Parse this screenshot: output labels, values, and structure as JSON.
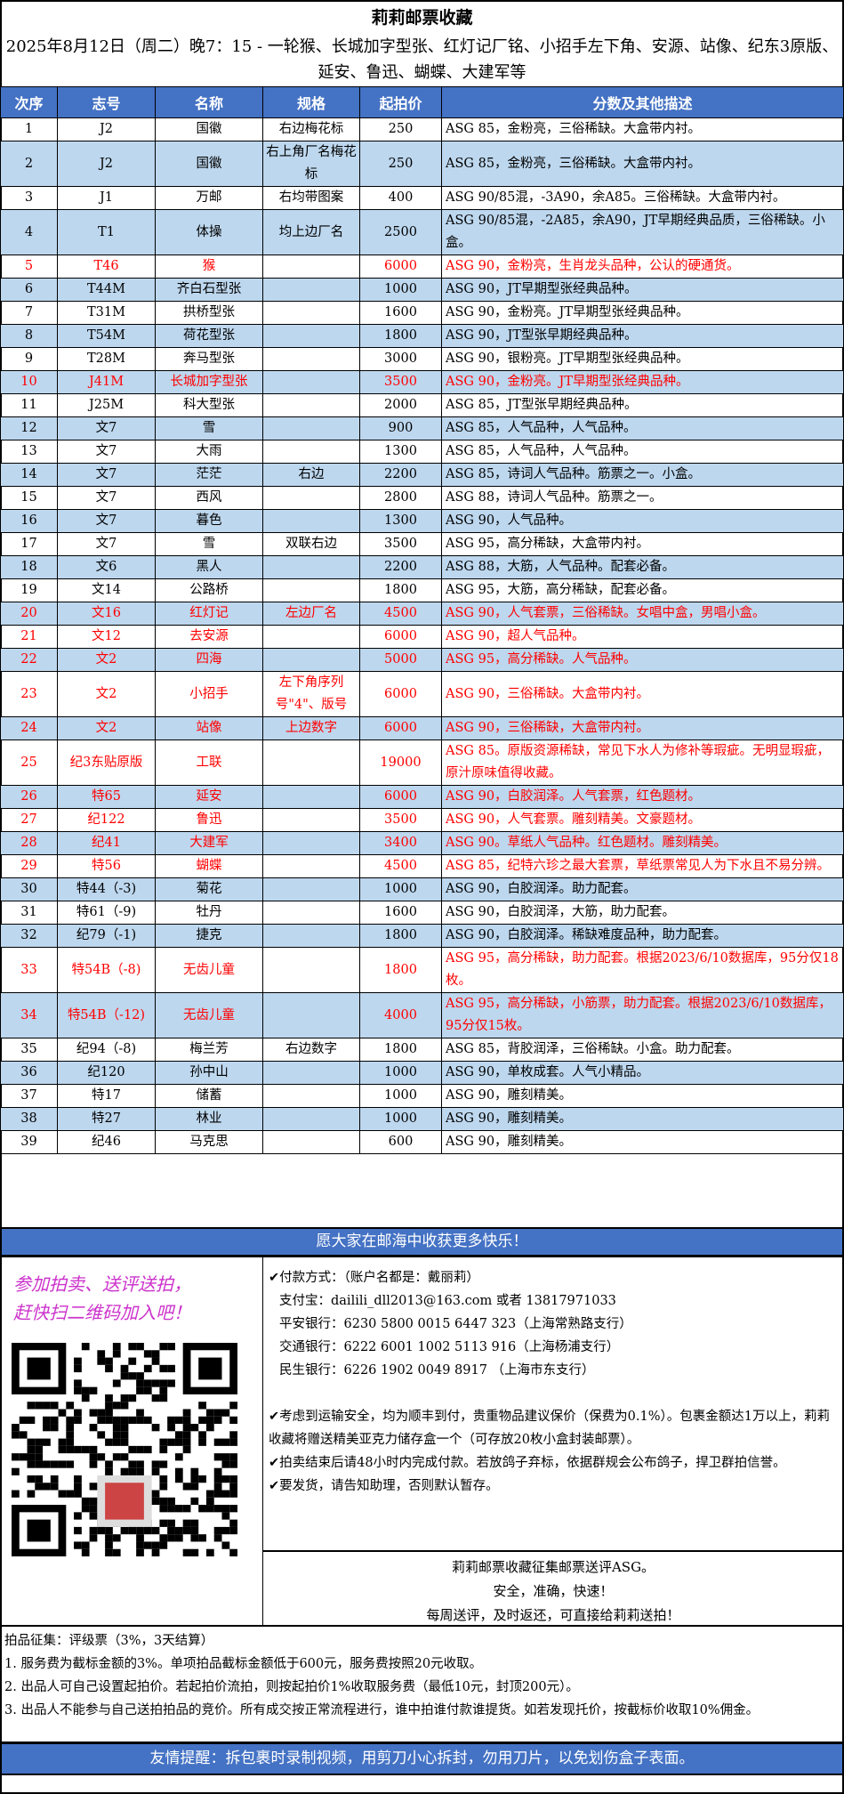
{
  "header": {
    "title": "莉莉邮票收藏",
    "subtitle": "2025年8月12日（周二）晚7：15 - 一轮猴、长城加字型张、红灯记厂铭、小招手左下角、安源、站像、纪东3原版、延安、鲁迅、蝴蝶、大建军等"
  },
  "table": {
    "columns": [
      "次序",
      "志号",
      "名称",
      "规格",
      "起拍价",
      "分数及其他描述"
    ],
    "rows": [
      [
        "1",
        "J2",
        "国徽",
        "右边梅花标",
        "250",
        "ASG 85，金粉亮，三俗稀缺。大盒带内衬。",
        false
      ],
      [
        "2",
        "J2",
        "国徽",
        "右上角厂名梅花标",
        "250",
        "ASG 85，金粉亮，三俗稀缺。大盒带内衬。",
        false
      ],
      [
        "3",
        "J1",
        "万邮",
        "右均带图案",
        "400",
        "ASG 90/85混，-3A90，余A85。三俗稀缺。大盒带内衬。",
        false
      ],
      [
        "4",
        "T1",
        "体操",
        "均上边厂名",
        "2500",
        "ASG 90/85混，-2A85，余A90，JT早期经典品质，三俗稀缺。小盒。",
        false
      ],
      [
        "5",
        "T46",
        "猴",
        "",
        "6000",
        "ASG 90，金粉亮，生肖龙头品种，公认的硬通货。",
        true
      ],
      [
        "6",
        "T44M",
        "齐白石型张",
        "",
        "1000",
        "ASG 90，JT早期型张经典品种。",
        false
      ],
      [
        "7",
        "T31M",
        "拱桥型张",
        "",
        "1600",
        "ASG 90，金粉亮。JT早期型张经典品种。",
        false
      ],
      [
        "8",
        "T54M",
        "荷花型张",
        "",
        "1800",
        "ASG 90，JT型张早期经典品种。",
        false
      ],
      [
        "9",
        "T28M",
        "奔马型张",
        "",
        "3000",
        "ASG 90，银粉亮。JT早期型张经典品种。",
        false
      ],
      [
        "10",
        "J41M",
        "长城加字型张",
        "",
        "3500",
        "ASG 90，金粉亮。JT早期型张经典品种。",
        true
      ],
      [
        "11",
        "J25M",
        "科大型张",
        "",
        "2000",
        "ASG 85，JT型张早期经典品种。",
        false
      ],
      [
        "12",
        "文7",
        "雪",
        "",
        "900",
        "ASG 85，人气品种，人气品种。",
        false
      ],
      [
        "13",
        "文7",
        "大雨",
        "",
        "1300",
        "ASG 85，人气品种，人气品种。",
        false
      ],
      [
        "14",
        "文7",
        "茫茫",
        "右边",
        "2200",
        "ASG 85，诗词人气品种。筋票之一。小盒。",
        false
      ],
      [
        "15",
        "文7",
        "西风",
        "",
        "2800",
        "ASG 88，诗词人气品种。筋票之一。",
        false
      ],
      [
        "16",
        "文7",
        "暮色",
        "",
        "1300",
        "ASG 90，人气品种。",
        false
      ],
      [
        "17",
        "文7",
        "雪",
        "双联右边",
        "3500",
        "ASG 95，高分稀缺，大盒带内衬。",
        false
      ],
      [
        "18",
        "文6",
        "黑人",
        "",
        "2200",
        "ASG 88，大筋，人气品种。配套必备。",
        false
      ],
      [
        "19",
        "文14",
        "公路桥",
        "",
        "1800",
        "ASG 95，大筋，高分稀缺，配套必备。",
        false
      ],
      [
        "20",
        "文16",
        "红灯记",
        "左边厂名",
        "4500",
        "ASG 90，人气套票，三俗稀缺。女唱中盒，男唱小盒。",
        true
      ],
      [
        "21",
        "文12",
        "去安源",
        "",
        "6000",
        "ASG 90，超人气品种。",
        true
      ],
      [
        "22",
        "文2",
        "四海",
        "",
        "5000",
        "ASG 95，高分稀缺。人气品种。",
        true
      ],
      [
        "23",
        "文2",
        "小招手",
        "左下角序列号\"4\"、版号",
        "6000",
        "ASG 90，三俗稀缺。大盒带内衬。",
        true
      ],
      [
        "24",
        "文2",
        "站像",
        "上边数字",
        "6000",
        "ASG 90，三俗稀缺，大盒带内衬。",
        true
      ],
      [
        "25",
        "纪3东贴原版",
        "工联",
        "",
        "19000",
        "ASG 85。原版资源稀缺，常见下水人为修补等瑕疵。无明显瑕疵，原汁原味值得收藏。",
        true
      ],
      [
        "26",
        "特65",
        "延安",
        "",
        "6000",
        "ASG 90，白胶润泽。人气套票，红色题材。",
        true
      ],
      [
        "27",
        "纪122",
        "鲁迅",
        "",
        "3500",
        "ASG 90，人气套票。雕刻精美。文豪题材。",
        true
      ],
      [
        "28",
        "纪41",
        "大建军",
        "",
        "3400",
        "ASG 90。草纸人气品种。红色题材。雕刻精美。",
        true
      ],
      [
        "29",
        "特56",
        "蝴蝶",
        "",
        "4500",
        "ASG 85，纪特六珍之最大套票，草纸票常见人为下水且不易分辨。",
        true
      ],
      [
        "30",
        "特44（-3)",
        "菊花",
        "",
        "1000",
        "ASG 90，白胶润泽。助力配套。",
        false
      ],
      [
        "31",
        "特61（-9)",
        "牡丹",
        "",
        "1600",
        "ASG 90，白胶润泽，大筋，助力配套。",
        false
      ],
      [
        "32",
        "纪79（-1)",
        "捷克",
        "",
        "1800",
        "ASG 90，白胶润泽。稀缺难度品种，助力配套。",
        false
      ],
      [
        "33",
        "特54B（-8)",
        "无齿儿童",
        "",
        "1800",
        "ASG 95，高分稀缺，助力配套。根据2023/6/10数据库，95分仅18枚。",
        true
      ],
      [
        "34",
        "特54B（-12)",
        "无齿儿童",
        "",
        "4000",
        "ASG 95，高分稀缺，小筋票，助力配套。根据2023/6/10数据库，95分仅15枚。",
        true
      ],
      [
        "35",
        "纪94（-8)",
        "梅兰芳",
        "右边数字",
        "1800",
        "ASG 85，背胶润泽，三俗稀缺。小盒。助力配套。",
        false
      ],
      [
        "36",
        "纪120",
        "孙中山",
        "",
        "1000",
        "ASG 90，单枚成套。人气小精品。",
        false
      ],
      [
        "37",
        "特17",
        "储蓄",
        "",
        "1000",
        "ASG 90，雕刻精美。",
        false
      ],
      [
        "38",
        "特27",
        "林业",
        "",
        "1000",
        "ASG 90，雕刻精美。",
        false
      ],
      [
        "39",
        "纪46",
        "马克思",
        "",
        "600",
        "ASG 90，雕刻精美。",
        false
      ]
    ]
  },
  "banner_top": "愿大家在邮海中收获更多快乐！",
  "promo": {
    "line1": "参加拍卖、送评送拍，",
    "line2": "赶快扫二维码加入吧！",
    "qr_icon": "qr-code"
  },
  "payment": {
    "heading": "✔付款方式：（账户名都是：戴丽莉）",
    "alipay": "支付宝：dailili_dll2013@163.com  或者 13817971033",
    "pingan": "平安银行：6230 5800 0015 6447 323（上海常熟路支行）",
    "jiaotong": "交通银行：6222 6001 1002 5113 916（上海杨浦支行）",
    "minsheng": "民生银行：6226 1902 0049 8917 （上海市东支行）",
    "shipping": "✔考虑到运输安全，均为顺丰到付，贵重物品建议保价（保费为0.1%）。包裹金额达1万以上，莉莉收藏将赠送精美亚克力储存盒一个（可存放20枚小盒封装邮票）。",
    "deadline": "✔拍卖结束后请48小时内完成付款。若放鸽子弃标，依据群规会公布鸽子，捍卫群拍信誉。",
    "ship_notice": "✔要发货，请告知助理，否则默认暂存。"
  },
  "slogan": {
    "line1": "莉莉邮票收藏征集邮票送评ASG。",
    "line2": "安全，准确，快速！",
    "line3": "每周送评，及时返还，可直接给莉莉送拍！"
  },
  "rules": {
    "heading": "拍品征集：评级票（3%，3天结算）",
    "r1": "1. 服务费为截标金额的3%。单项拍品截标金额低于600元，服务费按照20元收取。",
    "r2": "2. 出品人可自己设置起拍价。若起拍价流拍，则按起拍价1%收取服务费（最低10元，封顶200元）。",
    "r3": "3. 出品人不能参与自己送拍拍品的竞价。所有成交按正常流程进行，谁中拍谁付款谁提货。如若发现托价，按截标价收取10%佣金。"
  },
  "banner_bottom": "友情提醒：拆包裹时录制视频，用剪刀小心拆封，勿用刀片，以免划伤盒子表面。",
  "colors": {
    "header_blue": "#4472C4",
    "row_alt": "#BDD7EE",
    "highlight_red": "#FF0000",
    "promo_purple": "#CC33CC"
  }
}
